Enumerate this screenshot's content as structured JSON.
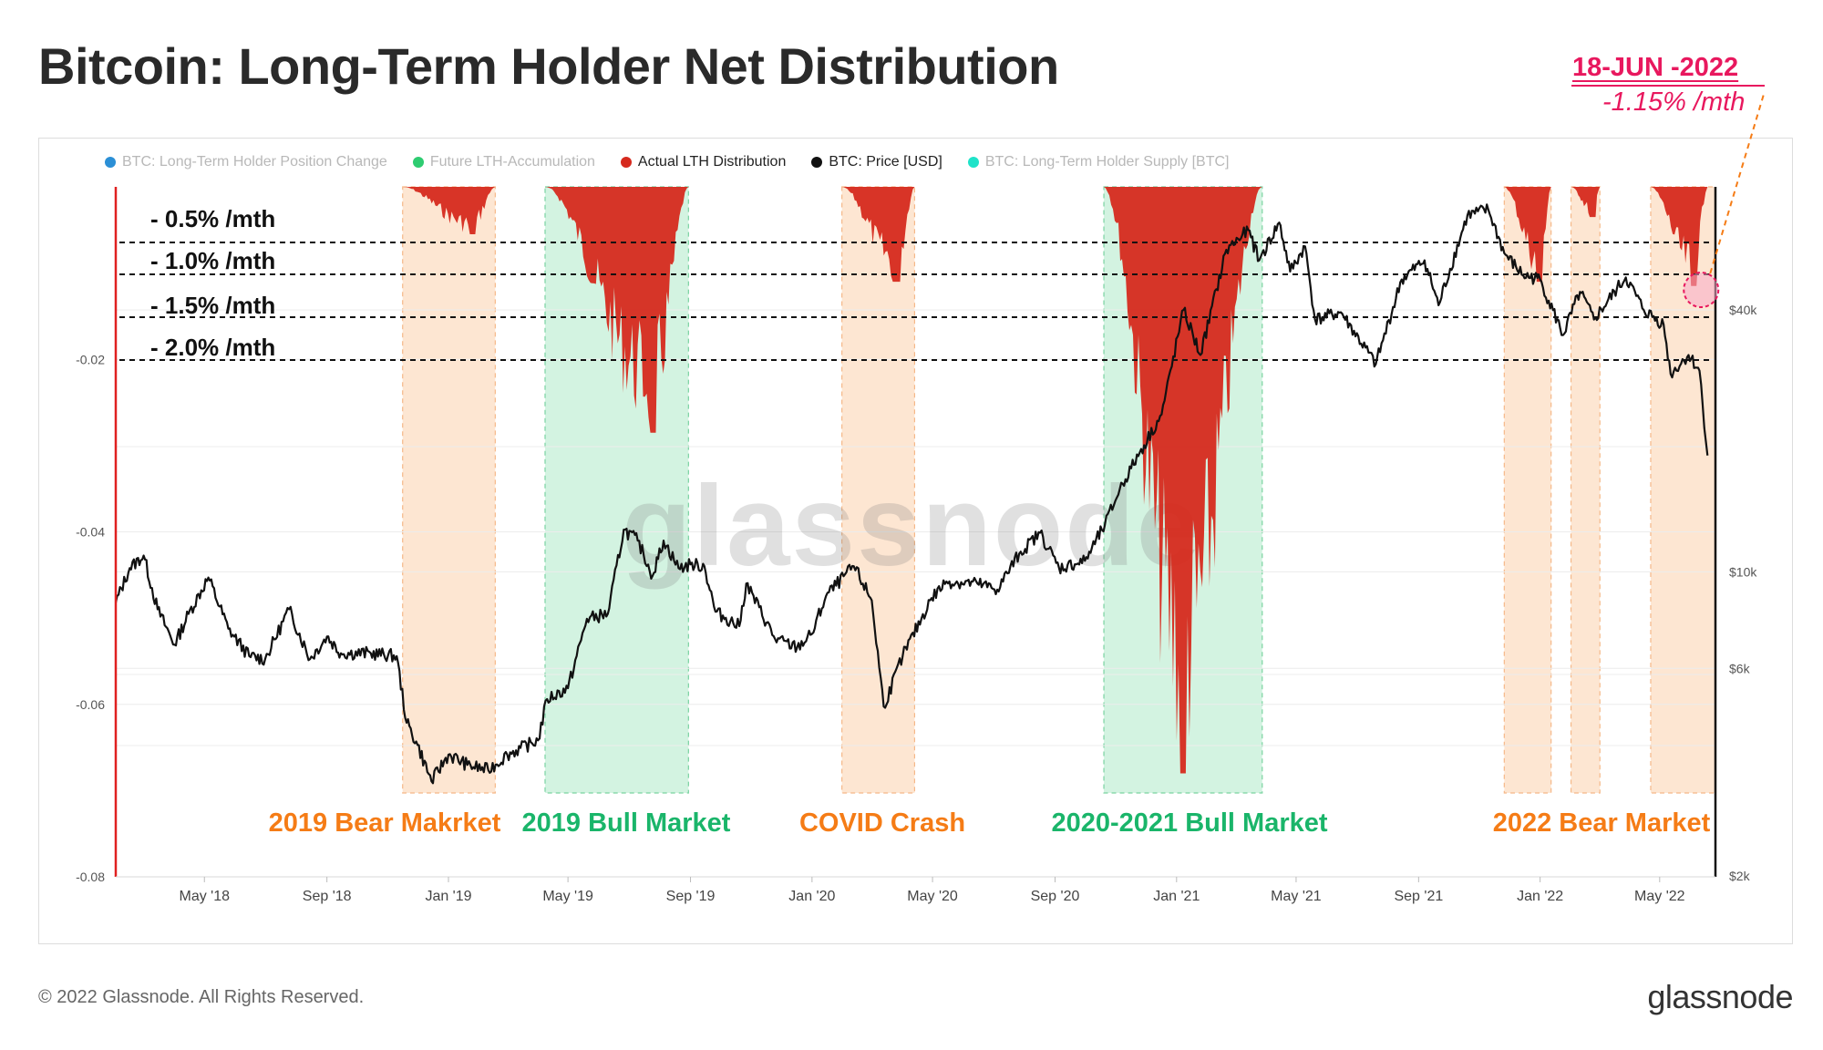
{
  "page": {
    "title": "Bitcoin: Long-Term Holder Net Distribution",
    "copyright": "© 2022 Glassnode. All Rights Reserved.",
    "brand": "glassnode",
    "watermark": "glassnode"
  },
  "annotation": {
    "date": "18-JUN -2022",
    "value": "-1.15% /mth",
    "color": "#e8185e"
  },
  "legend": [
    {
      "label": "BTC: Long-Term Holder Position Change",
      "color": "#2b8fd6",
      "active": false
    },
    {
      "label": "Future LTH-Accumulation",
      "color": "#2ecc71",
      "active": false
    },
    {
      "label": "Actual LTH Distribution",
      "color": "#d62a1e",
      "active": true
    },
    {
      "label": "BTC: Price [USD]",
      "color": "#111111",
      "active": true
    },
    {
      "label": "BTC: Long-Term Holder Supply [BTC]",
      "color": "#1fe3c9",
      "active": false
    }
  ],
  "chart_data": {
    "type": "area",
    "x_ticks": [
      "May '18",
      "Sep '18",
      "Jan '19",
      "May '19",
      "Sep '19",
      "Jan '20",
      "May '20",
      "Sep '20",
      "Jan '21",
      "May '21",
      "Sep '21",
      "Jan '22",
      "May '22"
    ],
    "y_left": {
      "ticks": [
        "-0.02",
        "-0.04",
        "-0.06",
        "-0.08"
      ],
      "values": [
        -0.02,
        -0.04,
        -0.06,
        -0.08
      ],
      "range": [
        -0.08,
        0.0
      ]
    },
    "y_right": {
      "ticks": [
        "$40k",
        "$10k",
        "$6k",
        "$2k"
      ],
      "values": [
        40000,
        10000,
        6000,
        2000
      ],
      "scale": "log"
    },
    "thresholds": [
      {
        "label": "- 0.5% /mth"
      },
      {
        "label": "- 1.0% /mth"
      },
      {
        "label": "- 1.5% /mth"
      },
      {
        "label": "- 2.0% /mth"
      }
    ],
    "regimes": [
      {
        "label": "2019 Bear Makrket",
        "type": "bear",
        "start": "2018-11-16",
        "end": "2019-02-17",
        "labelled": true
      },
      {
        "label": "2019 Bull Market",
        "type": "bull",
        "start": "2019-04-08",
        "end": "2019-08-30",
        "labelled": true
      },
      {
        "label": "COVID Crash",
        "type": "bear",
        "start": "2020-01-31",
        "end": "2020-04-13",
        "labelled": true
      },
      {
        "label": "2020-2021 Bull Market",
        "type": "bull",
        "start": "2020-10-20",
        "end": "2021-03-28",
        "labelled": true
      },
      {
        "label": "",
        "type": "bear",
        "start": "2021-11-26",
        "end": "2022-01-12",
        "labelled": false
      },
      {
        "label": "",
        "type": "bear",
        "start": "2022-02-01",
        "end": "2022-03-02",
        "labelled": false
      },
      {
        "label": "2022 Bear Market",
        "type": "bear",
        "start": "2022-04-22",
        "end": "2022-06-26",
        "labelled": true
      }
    ],
    "regime_label_colors": {
      "bear": "#f57c16",
      "bull": "#1ab56a"
    },
    "regime_fill_colors": {
      "bear": "#fde6d2",
      "bull": "#d3f3e1"
    },
    "distribution_color": "#d62a1e",
    "distribution_bursts": [
      {
        "start": "2018-11-16",
        "end": "2019-02-17",
        "min": -0.0055
      },
      {
        "start": "2019-04-08",
        "end": "2019-08-30",
        "min": -0.0285
      },
      {
        "start": "2020-01-31",
        "end": "2020-04-13",
        "min": -0.011
      },
      {
        "start": "2020-10-20",
        "end": "2021-03-28",
        "min": -0.068
      },
      {
        "start": "2021-11-26",
        "end": "2022-01-12",
        "min": -0.011
      },
      {
        "start": "2022-02-01",
        "end": "2022-03-02",
        "min": -0.0035
      },
      {
        "start": "2022-04-22",
        "end": "2022-06-18",
        "min": -0.0115
      }
    ],
    "price_series": {
      "name": "BTC: Price [USD]",
      "color": "#111111",
      "points": [
        [
          "2018-02-01",
          8500
        ],
        [
          "2018-02-15",
          10200
        ],
        [
          "2018-03-01",
          10900
        ],
        [
          "2018-03-15",
          8200
        ],
        [
          "2018-04-01",
          6800
        ],
        [
          "2018-04-15",
          8000
        ],
        [
          "2018-05-05",
          9700
        ],
        [
          "2018-05-25",
          7400
        ],
        [
          "2018-06-15",
          6400
        ],
        [
          "2018-07-01",
          6300
        ],
        [
          "2018-07-25",
          8200
        ],
        [
          "2018-08-15",
          6300
        ],
        [
          "2018-09-01",
          7100
        ],
        [
          "2018-09-15",
          6500
        ],
        [
          "2018-10-15",
          6500
        ],
        [
          "2018-11-10",
          6400
        ],
        [
          "2018-11-20",
          4500
        ],
        [
          "2018-12-01",
          4000
        ],
        [
          "2018-12-15",
          3300
        ],
        [
          "2019-01-01",
          3800
        ],
        [
          "2019-01-20",
          3600
        ],
        [
          "2019-02-10",
          3500
        ],
        [
          "2019-03-01",
          3800
        ],
        [
          "2019-04-01",
          4100
        ],
        [
          "2019-04-10",
          5100
        ],
        [
          "2019-05-01",
          5400
        ],
        [
          "2019-05-20",
          7800
        ],
        [
          "2019-06-10",
          8000
        ],
        [
          "2019-06-26",
          12500
        ],
        [
          "2019-07-10",
          11800
        ],
        [
          "2019-07-25",
          9800
        ],
        [
          "2019-08-05",
          11800
        ],
        [
          "2019-08-20",
          10200
        ],
        [
          "2019-09-01",
          10400
        ],
        [
          "2019-09-15",
          10300
        ],
        [
          "2019-09-26",
          8100
        ],
        [
          "2019-10-20",
          7500
        ],
        [
          "2019-10-27",
          9400
        ],
        [
          "2019-11-25",
          7000
        ],
        [
          "2019-12-17",
          6700
        ],
        [
          "2020-01-01",
          7200
        ],
        [
          "2020-01-15",
          8800
        ],
        [
          "2020-02-12",
          10300
        ],
        [
          "2020-03-01",
          8600
        ],
        [
          "2020-03-13",
          4900
        ],
        [
          "2020-04-01",
          6400
        ],
        [
          "2020-04-30",
          8700
        ],
        [
          "2020-05-15",
          9500
        ],
        [
          "2020-06-15",
          9400
        ],
        [
          "2020-07-05",
          9100
        ],
        [
          "2020-07-27",
          11000
        ],
        [
          "2020-08-17",
          12300
        ],
        [
          "2020-09-05",
          10200
        ],
        [
          "2020-10-01",
          10600
        ],
        [
          "2020-10-21",
          12800
        ],
        [
          "2020-11-05",
          15500
        ],
        [
          "2020-11-25",
          18800
        ],
        [
          "2020-12-17",
          23000
        ],
        [
          "2021-01-08",
          40000
        ],
        [
          "2021-01-25",
          31500
        ],
        [
          "2021-02-20",
          55000
        ],
        [
          "2021-03-14",
          61000
        ],
        [
          "2021-03-25",
          52000
        ],
        [
          "2021-04-14",
          63500
        ],
        [
          "2021-04-25",
          49000
        ],
        [
          "2021-05-10",
          56000
        ],
        [
          "2021-05-20",
          38000
        ],
        [
          "2021-06-15",
          39500
        ],
        [
          "2021-07-20",
          30000
        ],
        [
          "2021-08-15",
          47000
        ],
        [
          "2021-09-07",
          52000
        ],
        [
          "2021-09-21",
          41000
        ],
        [
          "2021-10-20",
          66000
        ],
        [
          "2021-11-10",
          68000
        ],
        [
          "2021-11-26",
          54000
        ],
        [
          "2021-12-15",
          48000
        ],
        [
          "2022-01-01",
          47000
        ],
        [
          "2022-01-24",
          35000
        ],
        [
          "2022-02-10",
          44000
        ],
        [
          "2022-02-24",
          38000
        ],
        [
          "2022-03-28",
          47500
        ],
        [
          "2022-04-15",
          40000
        ],
        [
          "2022-05-05",
          37000
        ],
        [
          "2022-05-12",
          28500
        ],
        [
          "2022-05-30",
          31500
        ],
        [
          "2022-06-10",
          29000
        ],
        [
          "2022-06-18",
          18500
        ]
      ]
    }
  }
}
